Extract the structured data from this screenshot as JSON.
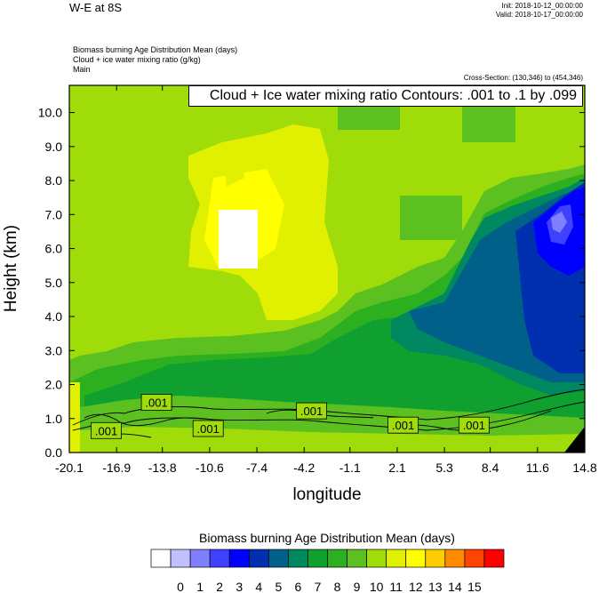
{
  "header": {
    "title": "W-E at 8S",
    "init": "Init: 2018-10-12_00:00:00",
    "valid": "Valid: 2018-10-17_00:00:00",
    "desc_line1": "Biomass burning Age Distribution Mean   (days)",
    "desc_line2": "Cloud + ice water mixing ratio   (g/kg)",
    "desc_line3": "Main",
    "cross_section": "Cross-Section: (130,346) to (454,346)",
    "contour_note": "Cloud + Ice water mixing ratio Contours: .001 to .1 by .099"
  },
  "chart_data": {
    "type": "heatmap",
    "xlabel": "longitude",
    "ylabel": "Height (km)",
    "x_ticks": [
      "-20.1",
      "-16.9",
      "-13.8",
      "-10.6",
      "-7.4",
      "-4.2",
      "-1.1",
      "2.1",
      "5.3",
      "8.4",
      "11.6",
      "14.8"
    ],
    "y_ticks": [
      "0.0",
      "1.0",
      "2.0",
      "3.0",
      "4.0",
      "5.0",
      "6.0",
      "7.0",
      "8.0",
      "9.0",
      "10.0"
    ],
    "xlim": [
      -20.1,
      14.8
    ],
    "ylim": [
      0,
      10.8
    ],
    "colorbar": {
      "title": "Biomass burning Age Distribution Mean  (days)",
      "labels": [
        "0",
        "1",
        "2",
        "3",
        "4",
        "5",
        "6",
        "7",
        "8",
        "9",
        "10",
        "11",
        "12",
        "13",
        "14",
        "15"
      ],
      "colors": [
        "#ffffff",
        "#c0c0ff",
        "#8080ff",
        "#4040ff",
        "#0000ff",
        "#0030b0",
        "#00608a",
        "#008860",
        "#10a030",
        "#2cb020",
        "#5cc020",
        "#a0dc0a",
        "#e0f000",
        "#ffff00",
        "#ffcc00",
        "#ff8c00",
        "#ff4400",
        "#ff0000"
      ]
    },
    "contour_labels": [
      ".001",
      ".001",
      ".001",
      ".001",
      ".001",
      ".001"
    ]
  }
}
